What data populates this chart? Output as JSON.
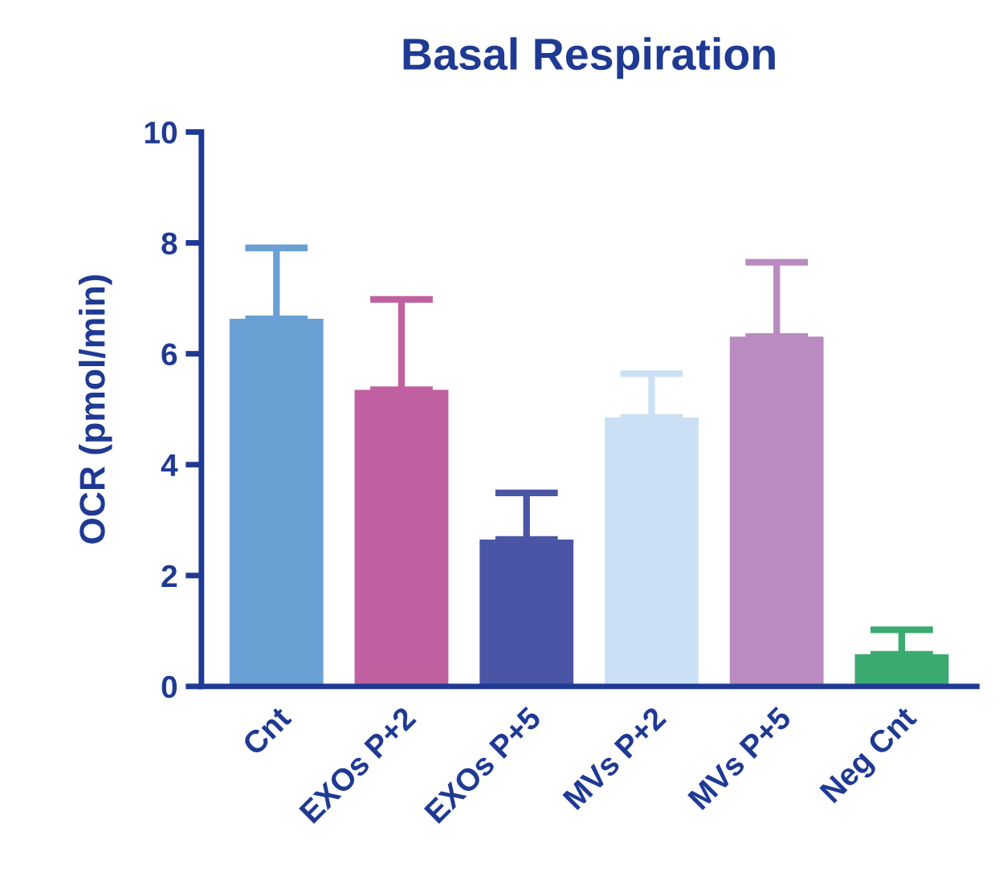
{
  "chart_data": {
    "type": "bar",
    "title": "Basal Respiration",
    "ylabel": "OCR (pmol/min)",
    "categories": [
      "Cnt",
      "EXOs P+2",
      "EXOs P+5",
      "MVs P+2",
      "MVs P+5",
      "Neg Cnt"
    ],
    "values": [
      6.63,
      5.35,
      2.65,
      4.85,
      6.31,
      0.58
    ],
    "errors": [
      [
        6.63,
        7.91
      ],
      [
        5.35,
        6.98
      ],
      [
        2.65,
        3.49
      ],
      [
        4.85,
        5.64
      ],
      [
        6.31,
        7.65
      ],
      [
        0.58,
        1.02
      ]
    ],
    "colors": [
      "#6a9fd4",
      "#c060a0",
      "#4a55a5",
      "#cce0f5",
      "#b98bc0",
      "#3aaa70"
    ],
    "ylim": [
      0,
      10
    ],
    "yticks": [
      0,
      2,
      4,
      6,
      8,
      10
    ],
    "grid": false,
    "legend": false
  }
}
